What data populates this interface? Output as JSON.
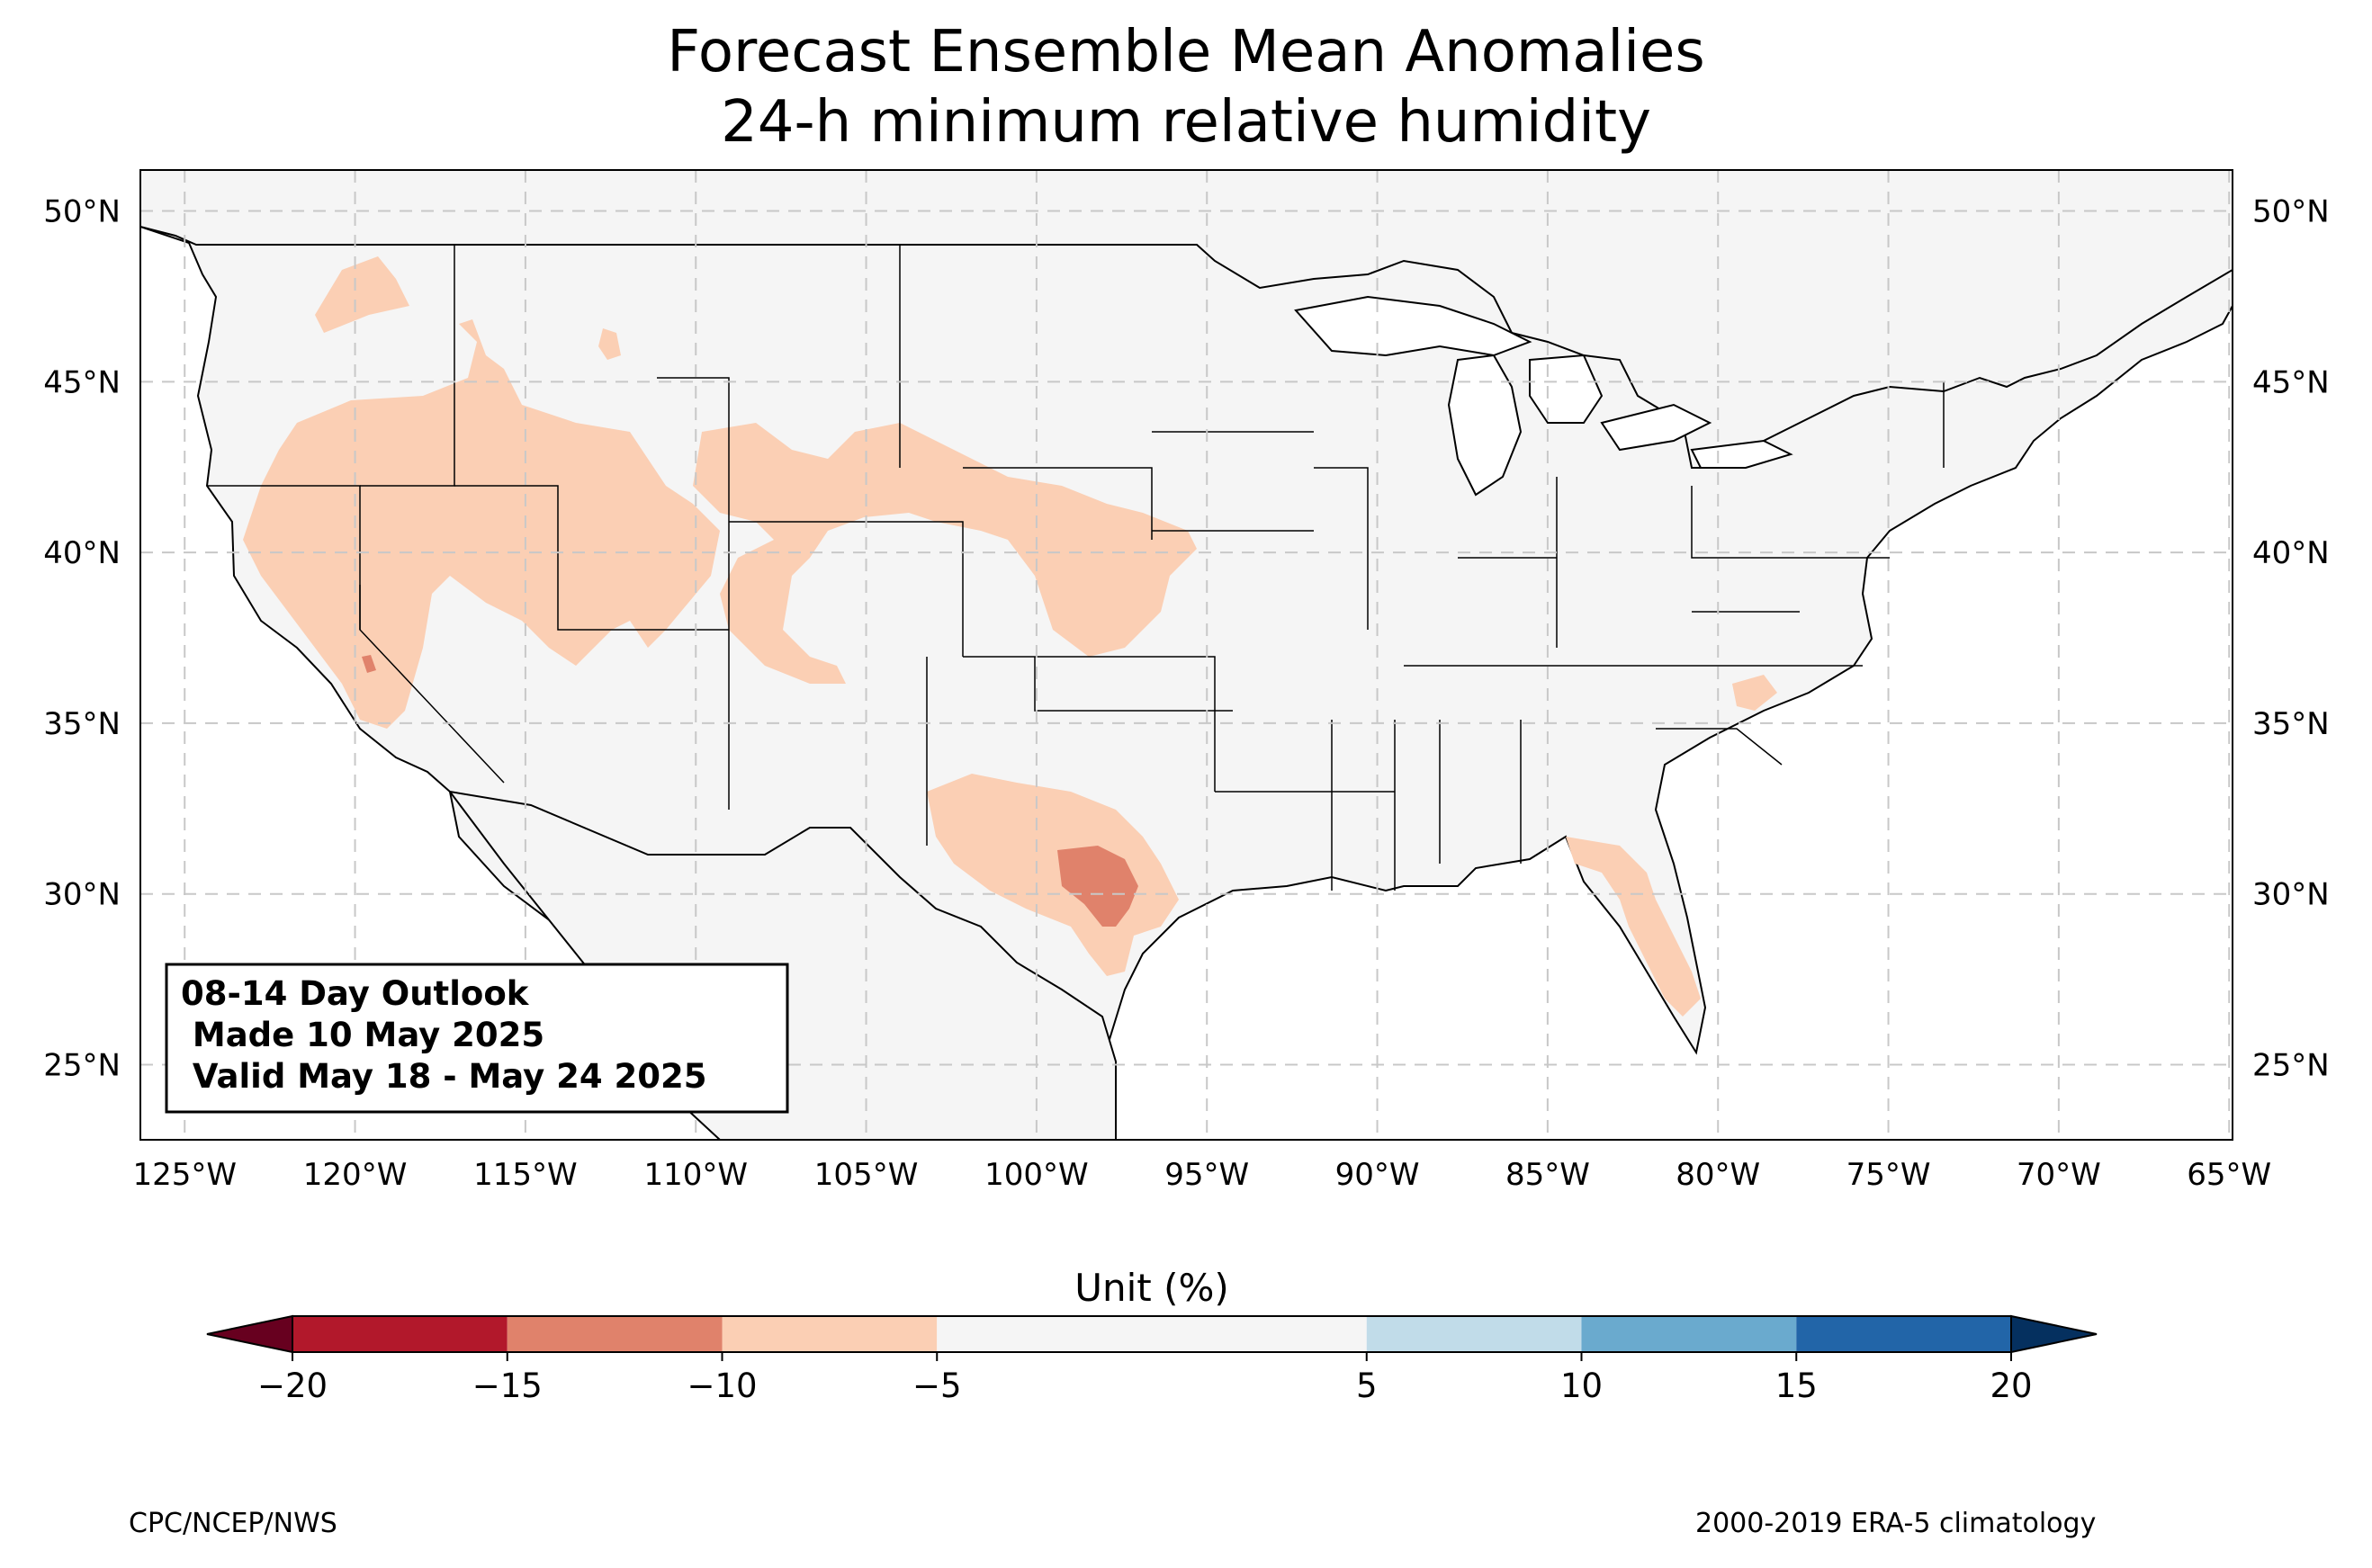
{
  "title": {
    "line1": "Forecast Ensemble Mean Anomalies",
    "line2": "24-h minimum relative humidity"
  },
  "info_box": {
    "line1": "08-14 Day Outlook",
    "line2": " Made 10 May 2025",
    "line3": " Valid May 18 - May 24 2025"
  },
  "map": {
    "projection": "PlateCarree",
    "lon_range": [
      -126.3,
      -64.9
    ],
    "lat_range": [
      22.8,
      51.2
    ],
    "gridlines": "dashed",
    "lat_labels": [
      "50°N",
      "45°N",
      "40°N",
      "35°N",
      "30°N",
      "25°N"
    ],
    "lat_values": [
      50,
      45,
      40,
      35,
      30,
      25
    ],
    "lon_labels": [
      "125°W",
      "120°W",
      "115°W",
      "110°W",
      "105°W",
      "100°W",
      "95°W",
      "90°W",
      "85°W",
      "80°W",
      "75°W",
      "70°W",
      "65°W"
    ],
    "lon_values": [
      -125,
      -120,
      -115,
      -110,
      -105,
      -100,
      -95,
      -90,
      -85,
      -80,
      -75,
      -70,
      -65
    ],
    "land_color": "#f5f5f5",
    "border_color": "#000000",
    "county_color": "#8c8c8c",
    "anomaly_regions": [
      {
        "region": "Pacific Northwest / Northern Rockies / Great Basin / California",
        "class": "-10 to -5"
      },
      {
        "region": "Southern Sierra Nevada, California",
        "class": "-15 to -10"
      },
      {
        "region": "Wyoming / Colorado / Central Plains",
        "class": "-10 to -5"
      },
      {
        "region": "Central Texas",
        "class": "-10 to -5"
      },
      {
        "region": "Central Texas core",
        "class": "-15 to -10"
      },
      {
        "region": "Florida Peninsula",
        "class": "-10 to -5"
      },
      {
        "region": "North Carolina",
        "class": "-10 to -5"
      }
    ]
  },
  "colorbar": {
    "label": "Unit (%)",
    "ticks": [
      "−20",
      "−15",
      "−10",
      "−5",
      "5",
      "10",
      "15",
      "20"
    ],
    "bins": [
      {
        "from": -20,
        "to": -15,
        "color": "#b2182b"
      },
      {
        "from": -15,
        "to": -10,
        "color": "#e0826b"
      },
      {
        "from": -10,
        "to": -5,
        "color": "#fbcfb4"
      },
      {
        "from": -5,
        "to": 5,
        "color": "#f5f5f5"
      },
      {
        "from": 5,
        "to": 10,
        "color": "#c1dce9"
      },
      {
        "from": 10,
        "to": 15,
        "color": "#6aaace"
      },
      {
        "from": 15,
        "to": 20,
        "color": "#2265a8"
      }
    ],
    "under_color": "#67001f",
    "over_color": "#05305f",
    "extend": "both"
  },
  "credits": {
    "left": "CPC/NCEP/NWS",
    "right": "2000-2019 ERA-5 climatology"
  }
}
